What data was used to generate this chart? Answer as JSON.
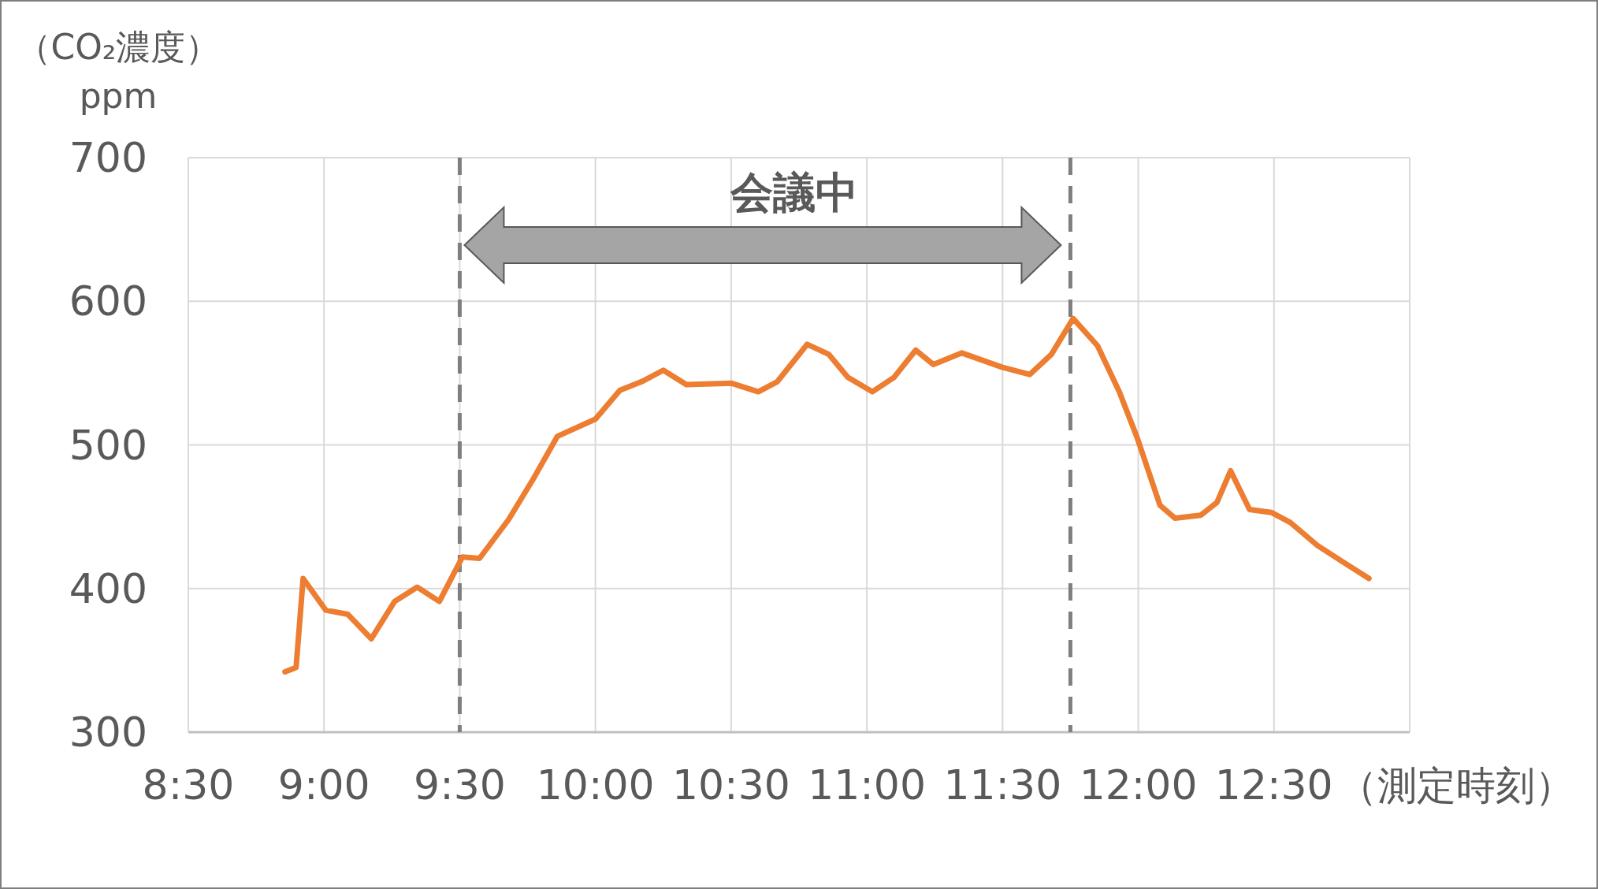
{
  "chart_data": {
    "type": "line",
    "ylabel": "（CO₂濃度）\nppm",
    "xlabel": "（測定時刻）",
    "x": [
      8.856,
      8.897,
      8.923,
      9.006,
      9.088,
      9.174,
      9.26,
      9.343,
      9.425,
      9.51,
      9.573,
      9.68,
      9.77,
      9.86,
      10.0,
      10.09,
      10.17,
      10.25,
      10.335,
      10.5,
      10.6,
      10.67,
      10.78,
      10.86,
      10.93,
      11.02,
      11.1,
      11.18,
      11.245,
      11.35,
      11.5,
      11.6,
      11.68,
      11.76,
      11.85,
      11.93,
      11.996,
      12.08,
      12.135,
      12.23,
      12.29,
      12.34,
      12.41,
      12.49,
      12.56,
      12.66,
      12.75,
      12.85
    ],
    "series": [
      {
        "color": "#ed7d31",
        "values": [
          342,
          345,
          407,
          385,
          382,
          365,
          391,
          401,
          391,
          422,
          421,
          448,
          476,
          506,
          518,
          538,
          544,
          552,
          542,
          543,
          537,
          544,
          570,
          563,
          547,
          537,
          547,
          566,
          556,
          564,
          554,
          549,
          563,
          588,
          569,
          537,
          505,
          458,
          449,
          451,
          460,
          482,
          455,
          453,
          446,
          430,
          419,
          407
        ]
      }
    ],
    "xlim": [
      8.5,
      13
    ],
    "xticks": [
      {
        "value": 8.5,
        "label": "8:30"
      },
      {
        "value": 9,
        "label": "9:00"
      },
      {
        "value": 9.5,
        "label": "9:30"
      },
      {
        "value": 10,
        "label": "10:00"
      },
      {
        "value": 10.5,
        "label": "10:30"
      },
      {
        "value": 11,
        "label": "11:00"
      },
      {
        "value": 11.5,
        "label": "11:30"
      },
      {
        "value": 12,
        "label": "12:00"
      },
      {
        "value": 12.5,
        "label": "12:30"
      },
      {
        "value": 13,
        "label": null
      }
    ],
    "ylim": [
      300,
      700
    ],
    "yticks": [
      300,
      400,
      500,
      600,
      700
    ],
    "grid": true,
    "marker": "none",
    "line_style": "solid",
    "ref_lines": [
      {
        "axis": "x",
        "value": 9.5,
        "color": "#7f7f7f",
        "line_style": "dashed"
      },
      {
        "axis": "x",
        "value": 11.75,
        "color": "#7f7f7f",
        "line_style": "dashed"
      }
    ],
    "annotations": [
      "会議中"
    ]
  }
}
